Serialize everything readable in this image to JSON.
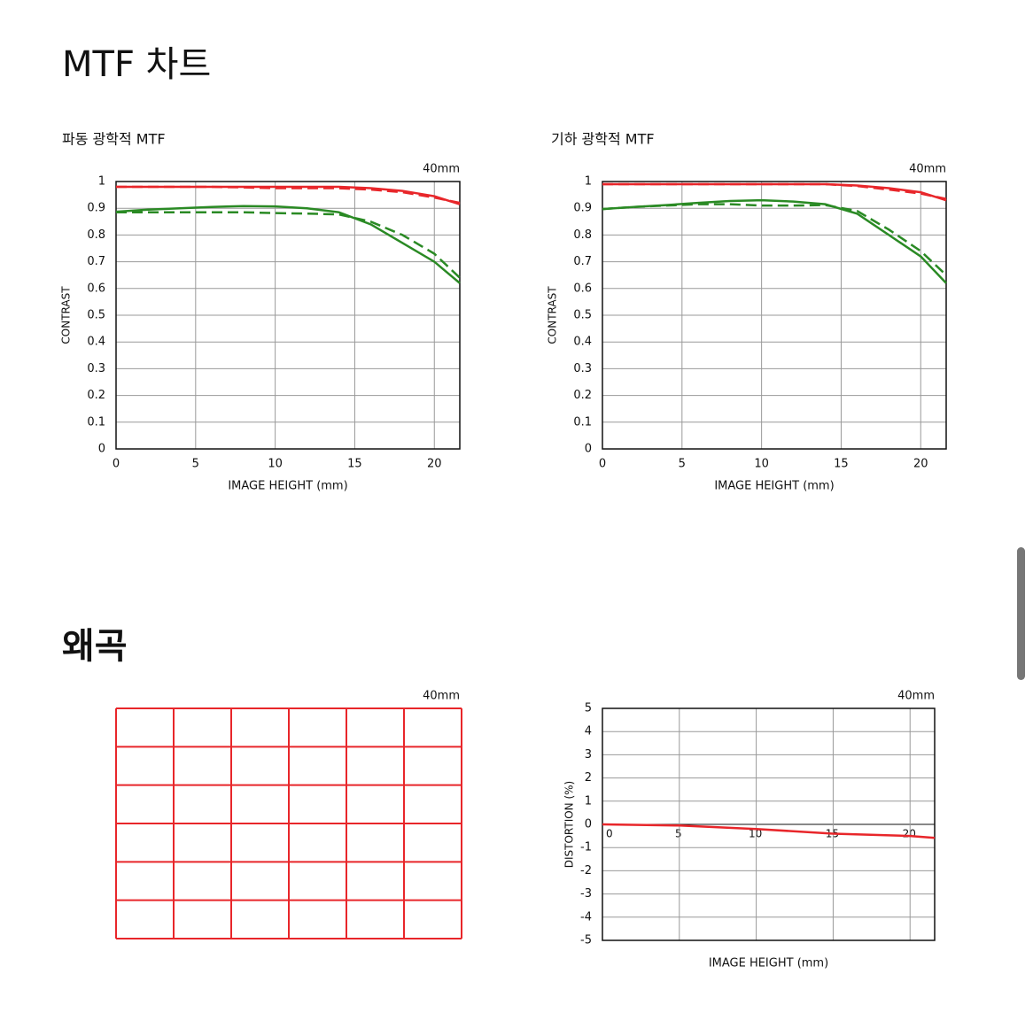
{
  "headings": [
    "MTF 차트",
    "왜곡"
  ],
  "chart_data": [
    {
      "type": "line",
      "subtitle": "파동 광학적 MTF",
      "annotation": "40mm",
      "ylabel": "CONTRAST",
      "xlabel": "IMAGE HEIGHT (mm)",
      "x": [
        0,
        2,
        4,
        6,
        8,
        10,
        12,
        14,
        16,
        18,
        20,
        21.6
      ],
      "xlim": [
        0,
        21.6
      ],
      "xticks": [
        0,
        5,
        10,
        15,
        20
      ],
      "ylim": [
        0,
        1
      ],
      "yticks": [
        0,
        0.1,
        0.2,
        0.3,
        0.4,
        0.5,
        0.6,
        0.7,
        0.8,
        0.9,
        1
      ],
      "grid": true,
      "series": [
        {
          "color": "#e8262a",
          "style": "solid",
          "values": [
            0.98,
            0.98,
            0.98,
            0.98,
            0.98,
            0.98,
            0.98,
            0.98,
            0.975,
            0.965,
            0.945,
            0.915
          ]
        },
        {
          "color": "#e8262a",
          "style": "dashed",
          "values": [
            0.98,
            0.98,
            0.98,
            0.98,
            0.978,
            0.975,
            0.975,
            0.975,
            0.97,
            0.96,
            0.94,
            0.92
          ]
        },
        {
          "color": "#2a8a24",
          "style": "solid",
          "values": [
            0.887,
            0.895,
            0.9,
            0.905,
            0.908,
            0.907,
            0.9,
            0.885,
            0.84,
            0.77,
            0.7,
            0.62
          ]
        },
        {
          "color": "#2a8a24",
          "style": "dashed",
          "values": [
            0.885,
            0.885,
            0.885,
            0.885,
            0.885,
            0.882,
            0.88,
            0.877,
            0.85,
            0.8,
            0.73,
            0.64
          ]
        }
      ]
    },
    {
      "type": "line",
      "subtitle": "기하 광학적 MTF",
      "annotation": "40mm",
      "ylabel": "CONTRAST",
      "xlabel": "IMAGE HEIGHT (mm)",
      "x": [
        0,
        2,
        4,
        6,
        8,
        10,
        12,
        14,
        16,
        18,
        20,
        21.6
      ],
      "xlim": [
        0,
        21.6
      ],
      "xticks": [
        0,
        5,
        10,
        15,
        20
      ],
      "ylim": [
        0,
        1
      ],
      "yticks": [
        0,
        0.1,
        0.2,
        0.3,
        0.4,
        0.5,
        0.6,
        0.7,
        0.8,
        0.9,
        1
      ],
      "grid": true,
      "series": [
        {
          "color": "#e8262a",
          "style": "solid",
          "values": [
            0.99,
            0.99,
            0.99,
            0.99,
            0.99,
            0.99,
            0.99,
            0.99,
            0.985,
            0.975,
            0.96,
            0.93
          ]
        },
        {
          "color": "#e8262a",
          "style": "dashed",
          "values": [
            0.99,
            0.99,
            0.99,
            0.99,
            0.99,
            0.99,
            0.99,
            0.99,
            0.983,
            0.97,
            0.955,
            0.935
          ]
        },
        {
          "color": "#2a8a24",
          "style": "solid",
          "values": [
            0.897,
            0.905,
            0.912,
            0.92,
            0.927,
            0.93,
            0.925,
            0.915,
            0.88,
            0.8,
            0.72,
            0.62
          ]
        },
        {
          "color": "#2a8a24",
          "style": "dashed",
          "values": [
            0.897,
            0.905,
            0.91,
            0.915,
            0.915,
            0.91,
            0.91,
            0.912,
            0.89,
            0.82,
            0.74,
            0.65
          ]
        }
      ]
    },
    {
      "type": "line",
      "annotation": "40mm",
      "ylabel": "DISTORTION (%)",
      "xlabel": "IMAGE HEIGHT (mm)",
      "x": [
        0,
        5,
        10,
        15,
        20,
        21.6
      ],
      "xlim": [
        0,
        21.6
      ],
      "xticks": [
        0,
        5,
        10,
        15,
        20
      ],
      "ylim": [
        -5,
        5
      ],
      "yticks": [
        -5,
        -4,
        -3,
        -2,
        -1,
        0,
        1,
        2,
        3,
        4,
        5
      ],
      "grid": true,
      "series": [
        {
          "color": "#e8262a",
          "style": "solid",
          "values": [
            0,
            -0.05,
            -0.2,
            -0.4,
            -0.5,
            -0.58
          ]
        }
      ]
    },
    {
      "type": "grid",
      "annotation": "40mm",
      "color": "#e8262a"
    }
  ]
}
